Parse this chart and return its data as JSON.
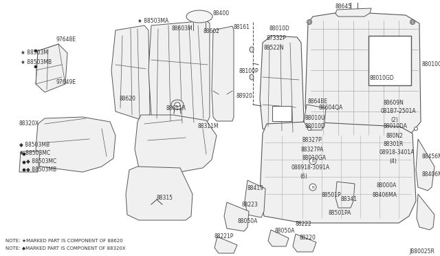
{
  "background_color": "#ffffff",
  "diagram_ref": "JB80025R",
  "note1": "NOTE: ★MARKED PART IS COMPONENT OF 88620",
  "note2": "NOTE: ◆MARKED PART IS COMPONENT OF 88320X",
  "line_color": "#555555",
  "text_color": "#333333",
  "font_size": 5.5
}
